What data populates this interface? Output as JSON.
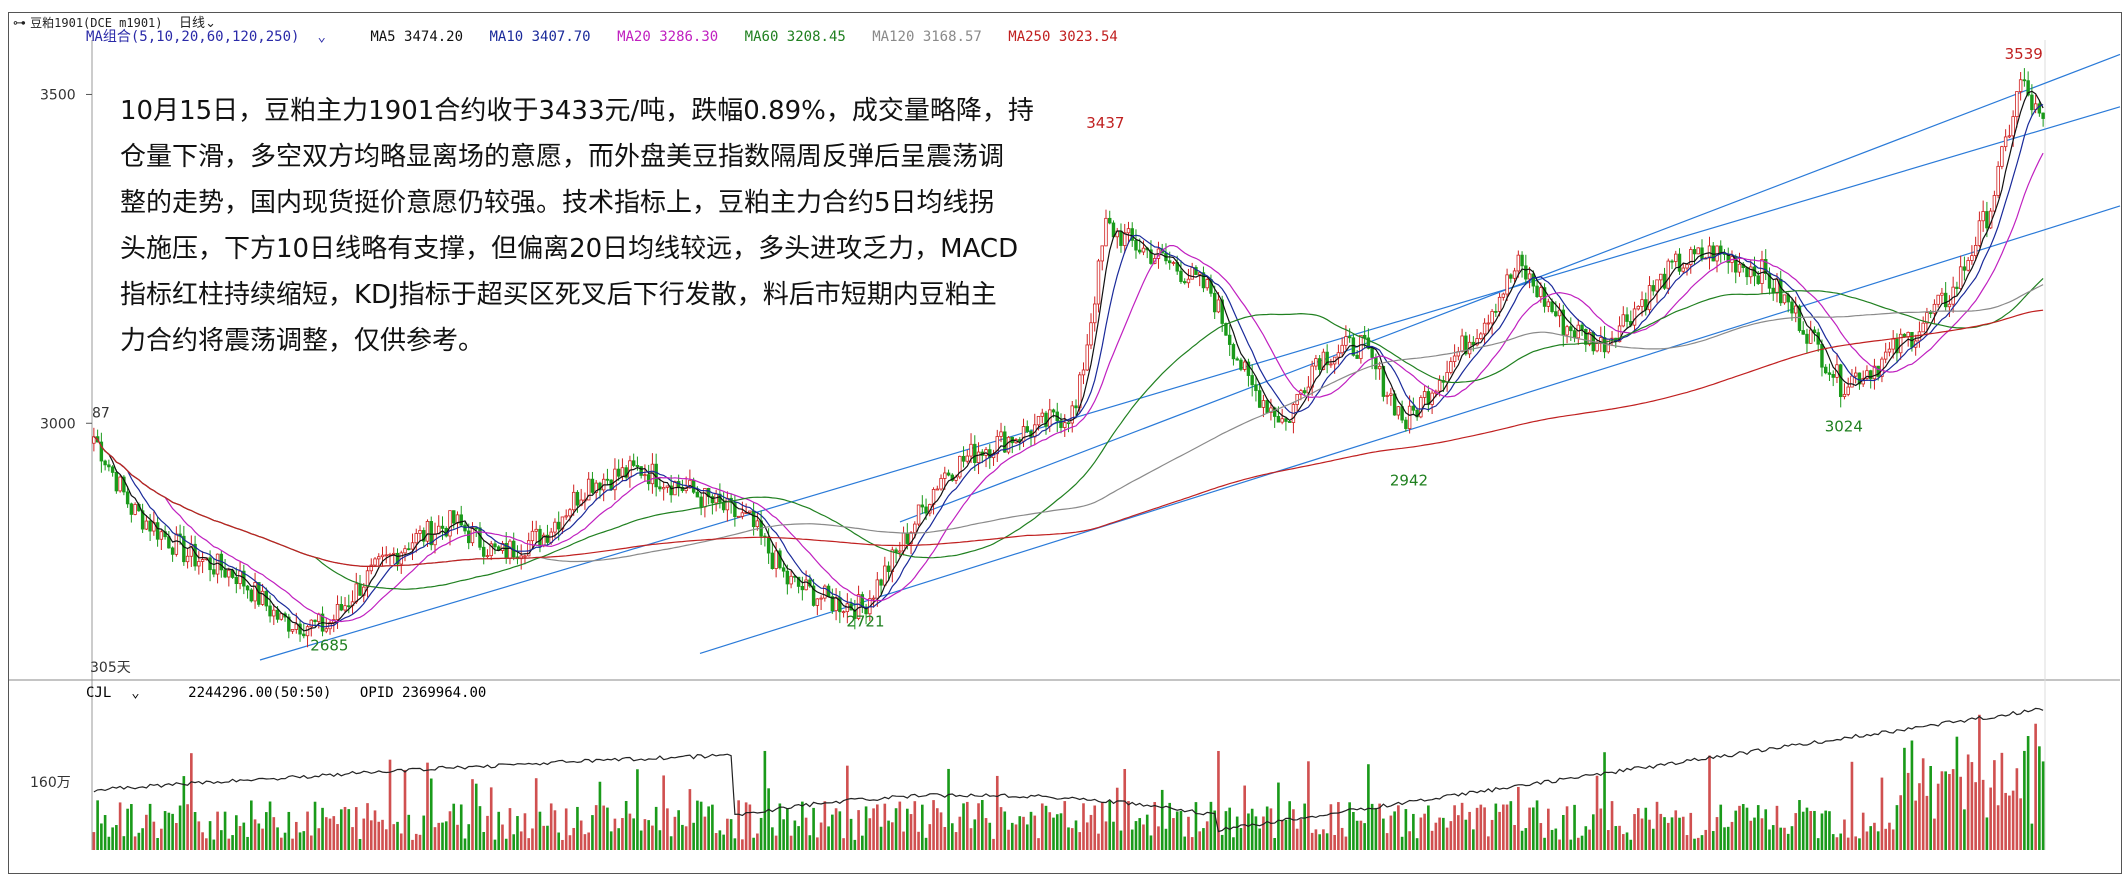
{
  "window": {
    "symbol": "豆粕1901(DCE m1901)",
    "period": "日线"
  },
  "ma_legend": {
    "combo": "MA组合(5,10,20,60,120,250)",
    "ma5": "MA5 3474.20",
    "ma10": "MA10 3407.70",
    "ma20": "MA20 3286.30",
    "ma60": "MA60 3208.45",
    "ma120": "MA120 3168.57",
    "ma250": "MA250 3023.54",
    "colors": {
      "combo": "#2a2aa8",
      "ma5": "#111111",
      "ma10": "#1a2a9a",
      "ma20": "#c020c0",
      "ma60": "#208020",
      "ma120": "#8a8a8a",
      "ma250": "#c02020"
    }
  },
  "volume_legend": {
    "cjl": "CJL",
    "cjl_value": "2244296.00(50:50)",
    "opid": "OPID 2369964.00"
  },
  "commentary": {
    "lines": [
      "10月15日，豆粕主力1901合约收于3433元/吨，跌幅0.89%，成交量略降，持",
      "仓量下滑，多空双方均略显离场的意愿，而外盘美豆指数隔周反弹后呈震荡调",
      "整的走势，国内现货挺价意愿仍较强。技术指标上，豆粕主力合约5日均线拐",
      "头施压，下方10日线略有支撑，但偏离20日均线较远，多头进攻乏力，MACD",
      "指标红柱持续缩短，KDJ指标于超买区死叉后下行发散，料后市短期内豆粕主",
      "力合约将震荡调整，仅供参考。"
    ]
  },
  "price_axis": {
    "labels": [
      "3500",
      "3000"
    ],
    "corner_left": "87",
    "days_label": "305天"
  },
  "volume_axis": {
    "label": "160万"
  },
  "annotations": {
    "high_3437": "3437",
    "high_3539": "3539",
    "low_2685": "2685",
    "low_2721": "2721",
    "low_2942": "2942",
    "low_3024": "3024"
  },
  "chart_data": {
    "type": "candlestick",
    "title": "",
    "ylim": [
      2640,
      3560
    ],
    "key_points": [
      {
        "label": "2685",
        "value": 2685
      },
      {
        "label": "2721",
        "value": 2721
      },
      {
        "label": "3437",
        "value": 3437
      },
      {
        "label": "2942",
        "value": 2942
      },
      {
        "label": "3024",
        "value": 3024
      },
      {
        "label": "3539",
        "value": 3539
      }
    ],
    "last_close": 3433,
    "moving_averages": {
      "MA5": 3474.2,
      "MA10": 3407.7,
      "MA20": 3286.3,
      "MA60": 3208.45,
      "MA120": 3168.57,
      "MA250": 3023.54
    },
    "volume": {
      "CJL": 2244296.0,
      "OPID": 2369964.0
    }
  }
}
